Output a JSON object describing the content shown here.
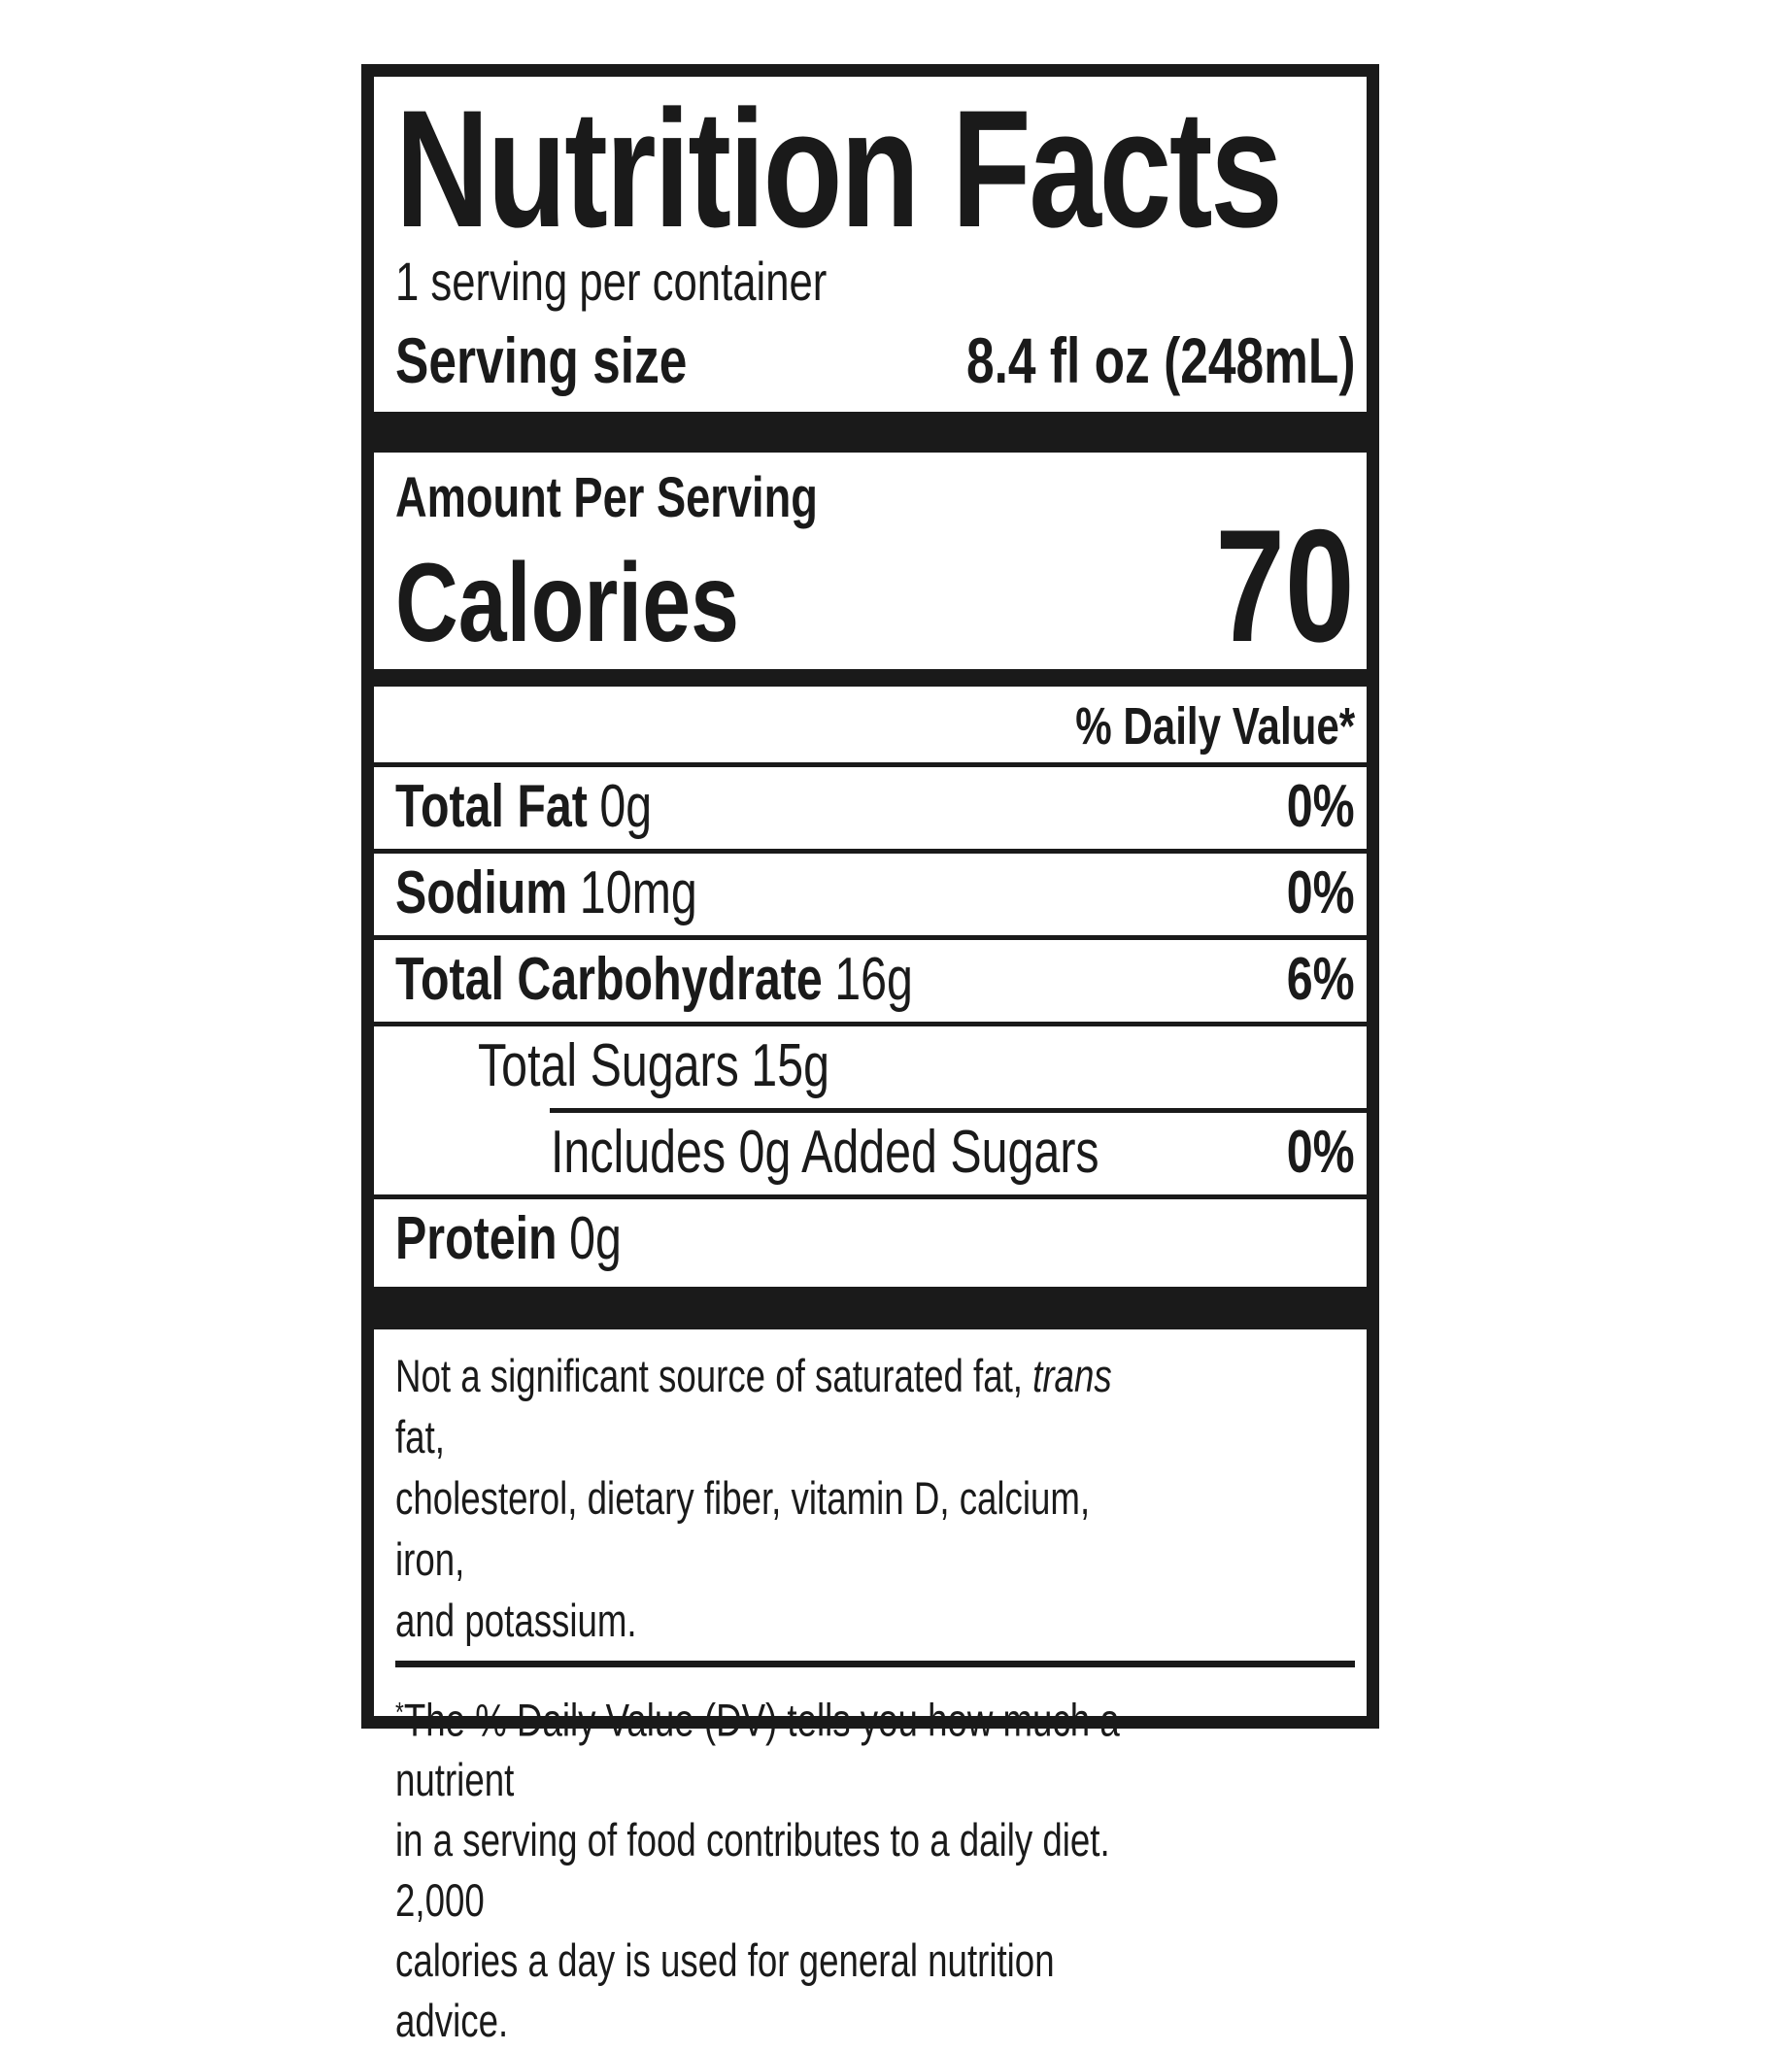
{
  "label": {
    "title": "Nutrition Facts",
    "servings_per_container": "1 serving per container",
    "serving_size": {
      "label": "Serving size",
      "value": "8.4 fl oz (248mL)"
    },
    "amount_per_serving": "Amount Per Serving",
    "calories": {
      "label": "Calories",
      "value": "70"
    },
    "daily_value_header": "% Daily Value*",
    "rows": [
      {
        "name": "Total Fat",
        "amount": "0g",
        "dv": "0%"
      },
      {
        "name": "Sodium",
        "amount": "10mg",
        "dv": "0%"
      },
      {
        "name": "Total Carbohydrate",
        "amount": "16g",
        "dv": "6%"
      },
      {
        "name": "Total Sugars",
        "amount": "15g",
        "dv": ""
      },
      {
        "name": "Includes 0g Added Sugars",
        "amount": "",
        "dv": "0%"
      },
      {
        "name": "Protein",
        "amount": "0g",
        "dv": ""
      }
    ],
    "insignificant_note": {
      "pre": "Not a significant source of saturated fat, ",
      "italic": "trans",
      "post": " fat,\ncholesterol, dietary fiber, vitamin D, calcium, iron,\nand potassium."
    },
    "footnote": {
      "asterisk": "*",
      "text": "The % Daily Value (DV) tells you how much a nutrient\nin a serving of food contributes to a daily diet. 2,000\ncalories a day is used for general nutrition advice."
    },
    "colors": {
      "ink": "#1a1a1a",
      "background": "#ffffff"
    }
  }
}
